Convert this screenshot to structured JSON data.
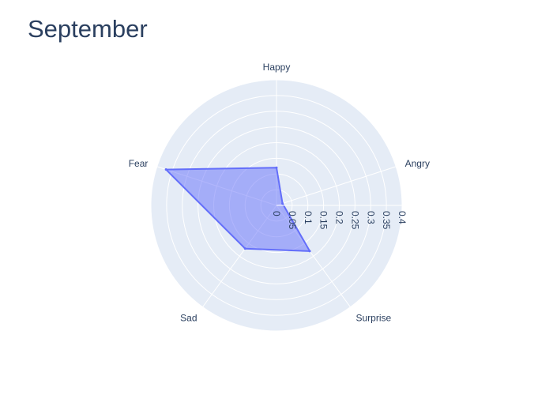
{
  "title": "September",
  "chart_data": {
    "type": "radar",
    "title": "September",
    "categories": [
      "Happy",
      "Angry",
      "Surprise",
      "Sad",
      "Fear"
    ],
    "series": [
      {
        "values": [
          0.12,
          0.02,
          0.18,
          0.17,
          0.37
        ]
      }
    ],
    "radial_range": [
      0,
      0.4
    ],
    "radial_ticks": [
      "0",
      "0.05",
      "0.1",
      "0.15",
      "0.2",
      "0.25",
      "0.3",
      "0.35",
      "0.4"
    ],
    "radial_axis_angle_deg": 0,
    "direction": "clockwise",
    "grid": true,
    "colors": {
      "background": "#e5ecf6",
      "grid": "#ffffff",
      "fill": "#636efa",
      "line": "#636efa",
      "text": "#2a3f5f"
    }
  }
}
